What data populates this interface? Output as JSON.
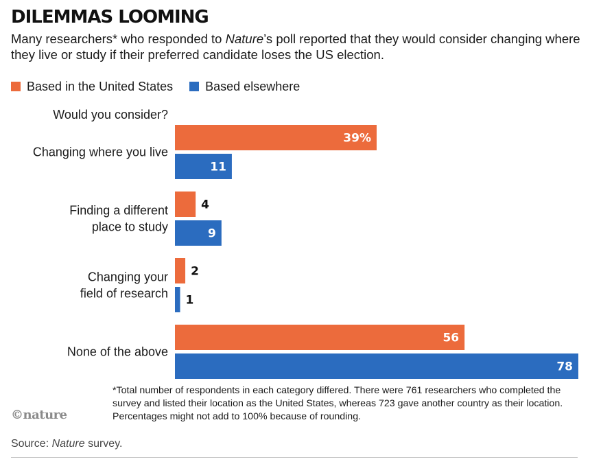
{
  "header": {
    "title": "DILEMMAS LOOMING",
    "subtitle_part1": "Many researchers* who responded to ",
    "subtitle_italic": "Nature",
    "subtitle_part2": "’s poll reported that they would consider changing where they live or study if their preferred candidate loses the US election."
  },
  "colors": {
    "us": "#ec6b3c",
    "elsewhere": "#2b6cbf"
  },
  "chart_data": {
    "type": "bar",
    "orientation": "horizontal",
    "title": "",
    "question_label": "Would you consider?",
    "xlabel": "",
    "ylabel": "",
    "xlim": [
      0,
      78
    ],
    "grid": false,
    "legend_position": "top-left",
    "categories": [
      [
        "Changing where you live"
      ],
      [
        "Finding a different",
        "place to study"
      ],
      [
        "Changing your",
        "field of research"
      ],
      [
        "None of the above"
      ]
    ],
    "series": [
      {
        "name": "Based in the United States",
        "color": "#ec6b3c",
        "values": [
          39,
          4,
          2,
          56
        ],
        "labels": [
          "39%",
          "4",
          "2",
          "56"
        ]
      },
      {
        "name": "Based elsewhere",
        "color": "#2b6cbf",
        "values": [
          11,
          9,
          1,
          78
        ],
        "labels": [
          "11",
          "9",
          "1",
          "78"
        ]
      }
    ]
  },
  "footnote": "*Total number of respondents in each category differed. There were 761 researchers who completed the survey and listed their location as the United States, whereas 723 gave another country as their location. Percentages might not add to 100% because of rounding.",
  "logo": "©nature",
  "source": {
    "prefix": "Source: ",
    "italic": "Nature",
    "suffix": " survey."
  }
}
